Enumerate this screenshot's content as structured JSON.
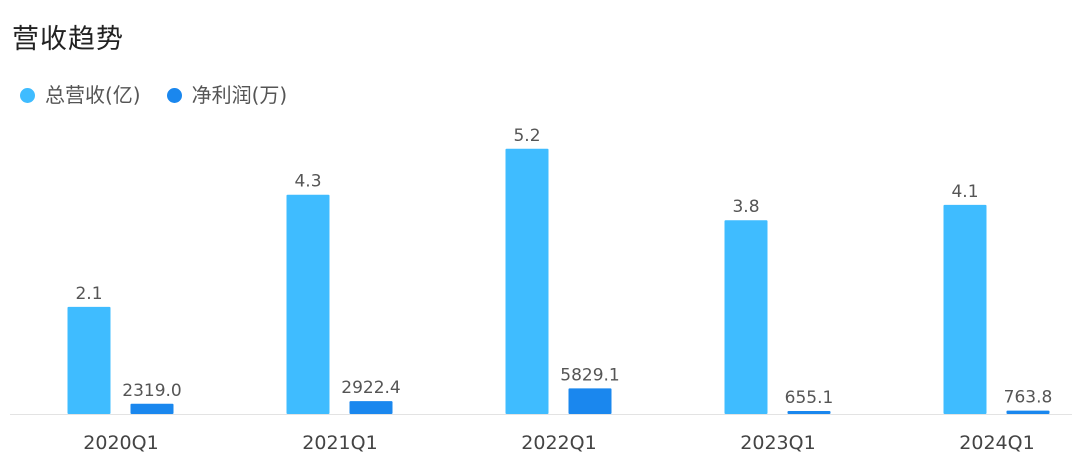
{
  "chart_data": {
    "type": "bar",
    "title": "营收趋势",
    "categories": [
      "2020Q1",
      "2021Q1",
      "2022Q1",
      "2023Q1",
      "2024Q1"
    ],
    "series": [
      {
        "name": "总营收(亿)",
        "color": "#3fbcff",
        "values": [
          2.1,
          4.3,
          5.2,
          3.8,
          4.1
        ],
        "labels": [
          "2.1",
          "4.3",
          "5.2",
          "3.8",
          "4.1"
        ]
      },
      {
        "name": "净利润(万)",
        "color": "#1a87ee",
        "values": [
          2319.0,
          2922.4,
          5829.1,
          655.1,
          763.8
        ],
        "labels": [
          "2319.0",
          "2922.4",
          "5829.1",
          "655.1",
          "763.8"
        ]
      }
    ],
    "legend_position": "top-left",
    "grid": false,
    "axis_color": "#e3e3e3"
  }
}
